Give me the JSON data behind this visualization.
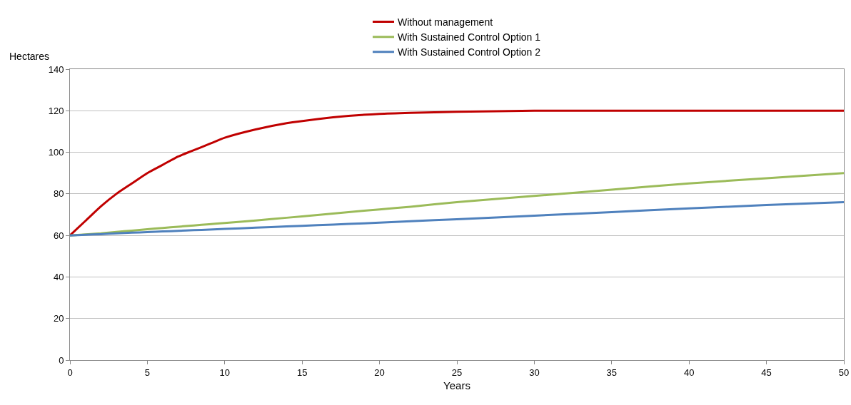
{
  "chart_data": {
    "type": "line",
    "xlabel": "Years",
    "ylabel": "Hectares",
    "x": [
      0,
      1,
      2,
      3,
      4,
      5,
      6,
      7,
      8,
      9,
      10,
      12,
      14,
      16,
      18,
      20,
      22,
      25,
      30,
      35,
      40,
      45,
      50
    ],
    "series": [
      {
        "name": "Without management",
        "color": "#c00000",
        "values": [
          60,
          67,
          74,
          80,
          85,
          90,
          94,
          98,
          101,
          104,
          107,
          111,
          114,
          116,
          117.5,
          118.5,
          119,
          119.5,
          120,
          120,
          120,
          120,
          120
        ]
      },
      {
        "name": "With Sustained Control Option 1",
        "color": "#9bbb59",
        "values": [
          60,
          60.5,
          61,
          61.7,
          62.3,
          63,
          63.6,
          64.2,
          64.8,
          65.4,
          66,
          67.2,
          68.5,
          69.8,
          71.2,
          72.5,
          73.8,
          76,
          79,
          82,
          85,
          87.5,
          90
        ]
      },
      {
        "name": "With Sustained Control Option 2",
        "color": "#4f81bd",
        "values": [
          60,
          60.3,
          60.6,
          61,
          61.3,
          61.6,
          61.9,
          62.2,
          62.5,
          62.8,
          63.1,
          63.7,
          64.3,
          64.9,
          65.5,
          66.1,
          66.8,
          67.8,
          69.5,
          71.2,
          73,
          74.6,
          76
        ]
      }
    ],
    "xlim": [
      0,
      50
    ],
    "xticks": [
      0,
      5,
      10,
      15,
      20,
      25,
      30,
      35,
      40,
      45,
      50
    ],
    "ylim": [
      0,
      140
    ],
    "yticks": [
      0,
      20,
      40,
      60,
      80,
      100,
      120,
      140
    ],
    "grid": "y",
    "legend": "top",
    "marker": "none",
    "line_style": "solid"
  }
}
